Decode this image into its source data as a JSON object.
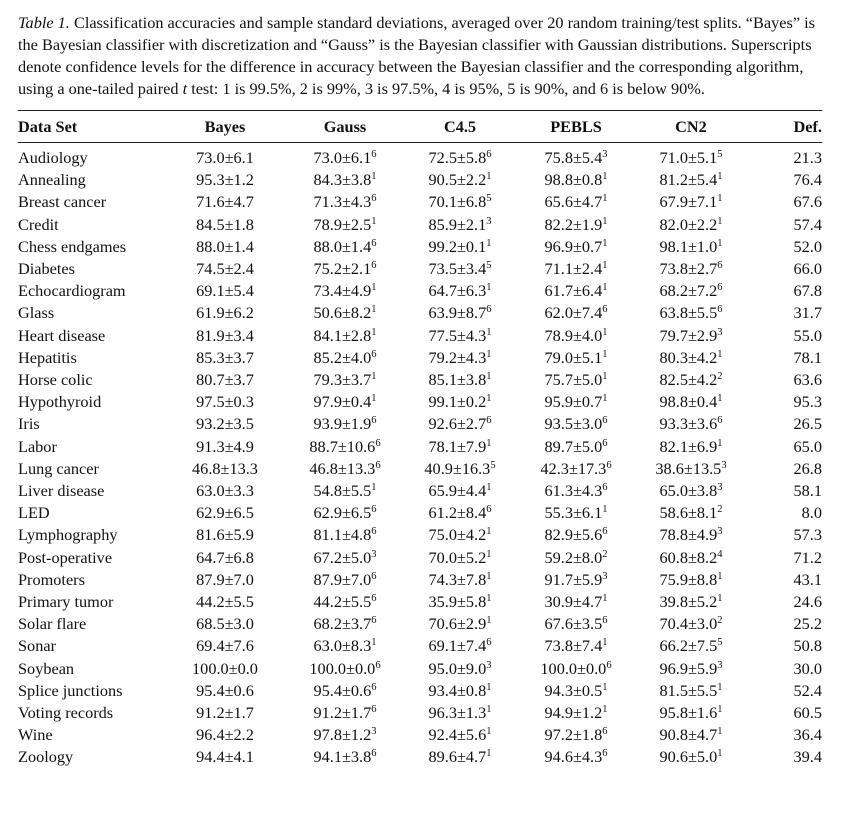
{
  "caption": {
    "label": "Table 1.",
    "text_before_t": "Classification accuracies and sample standard deviations, averaged over 20 random training/test splits. “Bayes” is the Bayesian classifier with discretization and “Gauss” is the Bayesian classifier with Gaussian distributions. Superscripts denote confidence levels for the difference in accuracy between the Bayesian classifier and the corresponding algorithm, using a one-tailed paired",
    "t_symbol": "t",
    "text_after_t": "test: 1 is 99.5%, 2 is 99%, 3 is 97.5%, 4 is 95%, 5 is 90%, and 6 is below 90%."
  },
  "table": {
    "headers": [
      "Data Set",
      "Bayes",
      "Gauss",
      "C4.5",
      "PEBLS",
      "CN2",
      "Def."
    ],
    "rows": [
      [
        "Audiology",
        [
          "73.0±6.1",
          ""
        ],
        [
          "73.0±6.1",
          "6"
        ],
        [
          "72.5±5.8",
          "6"
        ],
        [
          "75.8±5.4",
          "3"
        ],
        [
          "71.0±5.1",
          "5"
        ],
        "21.3"
      ],
      [
        "Annealing",
        [
          "95.3±1.2",
          ""
        ],
        [
          "84.3±3.8",
          "1"
        ],
        [
          "90.5±2.2",
          "1"
        ],
        [
          "98.8±0.8",
          "1"
        ],
        [
          "81.2±5.4",
          "1"
        ],
        "76.4"
      ],
      [
        "Breast cancer",
        [
          "71.6±4.7",
          ""
        ],
        [
          "71.3±4.3",
          "6"
        ],
        [
          "70.1±6.8",
          "5"
        ],
        [
          "65.6±4.7",
          "1"
        ],
        [
          "67.9±7.1",
          "1"
        ],
        "67.6"
      ],
      [
        "Credit",
        [
          "84.5±1.8",
          ""
        ],
        [
          "78.9±2.5",
          "1"
        ],
        [
          "85.9±2.1",
          "3"
        ],
        [
          "82.2±1.9",
          "1"
        ],
        [
          "82.0±2.2",
          "1"
        ],
        "57.4"
      ],
      [
        "Chess endgames",
        [
          "88.0±1.4",
          ""
        ],
        [
          "88.0±1.4",
          "6"
        ],
        [
          "99.2±0.1",
          "1"
        ],
        [
          "96.9±0.7",
          "1"
        ],
        [
          "98.1±1.0",
          "1"
        ],
        "52.0"
      ],
      [
        "Diabetes",
        [
          "74.5±2.4",
          ""
        ],
        [
          "75.2±2.1",
          "6"
        ],
        [
          "73.5±3.4",
          "5"
        ],
        [
          "71.1±2.4",
          "1"
        ],
        [
          "73.8±2.7",
          "6"
        ],
        "66.0"
      ],
      [
        "Echocardiogram",
        [
          "69.1±5.4",
          ""
        ],
        [
          "73.4±4.9",
          "1"
        ],
        [
          "64.7±6.3",
          "1"
        ],
        [
          "61.7±6.4",
          "1"
        ],
        [
          "68.2±7.2",
          "6"
        ],
        "67.8"
      ],
      [
        "Glass",
        [
          "61.9±6.2",
          ""
        ],
        [
          "50.6±8.2",
          "1"
        ],
        [
          "63.9±8.7",
          "6"
        ],
        [
          "62.0±7.4",
          "6"
        ],
        [
          "63.8±5.5",
          "6"
        ],
        "31.7"
      ],
      [
        "Heart disease",
        [
          "81.9±3.4",
          ""
        ],
        [
          "84.1±2.8",
          "1"
        ],
        [
          "77.5±4.3",
          "1"
        ],
        [
          "78.9±4.0",
          "1"
        ],
        [
          "79.7±2.9",
          "3"
        ],
        "55.0"
      ],
      [
        "Hepatitis",
        [
          "85.3±3.7",
          ""
        ],
        [
          "85.2±4.0",
          "6"
        ],
        [
          "79.2±4.3",
          "1"
        ],
        [
          "79.0±5.1",
          "1"
        ],
        [
          "80.3±4.2",
          "1"
        ],
        "78.1"
      ],
      [
        "Horse colic",
        [
          "80.7±3.7",
          ""
        ],
        [
          "79.3±3.7",
          "1"
        ],
        [
          "85.1±3.8",
          "1"
        ],
        [
          "75.7±5.0",
          "1"
        ],
        [
          "82.5±4.2",
          "2"
        ],
        "63.6"
      ],
      [
        "Hypothyroid",
        [
          "97.5±0.3",
          ""
        ],
        [
          "97.9±0.4",
          "1"
        ],
        [
          "99.1±0.2",
          "1"
        ],
        [
          "95.9±0.7",
          "1"
        ],
        [
          "98.8±0.4",
          "1"
        ],
        "95.3"
      ],
      [
        "Iris",
        [
          "93.2±3.5",
          ""
        ],
        [
          "93.9±1.9",
          "6"
        ],
        [
          "92.6±2.7",
          "6"
        ],
        [
          "93.5±3.0",
          "6"
        ],
        [
          "93.3±3.6",
          "6"
        ],
        "26.5"
      ],
      [
        "Labor",
        [
          "91.3±4.9",
          ""
        ],
        [
          "88.7±10.6",
          "6"
        ],
        [
          "78.1±7.9",
          "1"
        ],
        [
          "89.7±5.0",
          "6"
        ],
        [
          "82.1±6.9",
          "1"
        ],
        "65.0"
      ],
      [
        "Lung cancer",
        [
          "46.8±13.3",
          ""
        ],
        [
          "46.8±13.3",
          "6"
        ],
        [
          "40.9±16.3",
          "5"
        ],
        [
          "42.3±17.3",
          "6"
        ],
        [
          "38.6±13.5",
          "3"
        ],
        "26.8"
      ],
      [
        "Liver disease",
        [
          "63.0±3.3",
          ""
        ],
        [
          "54.8±5.5",
          "1"
        ],
        [
          "65.9±4.4",
          "1"
        ],
        [
          "61.3±4.3",
          "6"
        ],
        [
          "65.0±3.8",
          "3"
        ],
        "58.1"
      ],
      [
        "LED",
        [
          "62.9±6.5",
          ""
        ],
        [
          "62.9±6.5",
          "6"
        ],
        [
          "61.2±8.4",
          "6"
        ],
        [
          "55.3±6.1",
          "1"
        ],
        [
          "58.6±8.1",
          "2"
        ],
        "8.0"
      ],
      [
        "Lymphography",
        [
          "81.6±5.9",
          ""
        ],
        [
          "81.1±4.8",
          "6"
        ],
        [
          "75.0±4.2",
          "1"
        ],
        [
          "82.9±5.6",
          "6"
        ],
        [
          "78.8±4.9",
          "3"
        ],
        "57.3"
      ],
      [
        "Post-operative",
        [
          "64.7±6.8",
          ""
        ],
        [
          "67.2±5.0",
          "3"
        ],
        [
          "70.0±5.2",
          "1"
        ],
        [
          "59.2±8.0",
          "2"
        ],
        [
          "60.8±8.2",
          "4"
        ],
        "71.2"
      ],
      [
        "Promoters",
        [
          "87.9±7.0",
          ""
        ],
        [
          "87.9±7.0",
          "6"
        ],
        [
          "74.3±7.8",
          "1"
        ],
        [
          "91.7±5.9",
          "3"
        ],
        [
          "75.9±8.8",
          "1"
        ],
        "43.1"
      ],
      [
        "Primary tumor",
        [
          "44.2±5.5",
          ""
        ],
        [
          "44.2±5.5",
          "6"
        ],
        [
          "35.9±5.8",
          "1"
        ],
        [
          "30.9±4.7",
          "1"
        ],
        [
          "39.8±5.2",
          "1"
        ],
        "24.6"
      ],
      [
        "Solar flare",
        [
          "68.5±3.0",
          ""
        ],
        [
          "68.2±3.7",
          "6"
        ],
        [
          "70.6±2.9",
          "1"
        ],
        [
          "67.6±3.5",
          "6"
        ],
        [
          "70.4±3.0",
          "2"
        ],
        "25.2"
      ],
      [
        "Sonar",
        [
          "69.4±7.6",
          ""
        ],
        [
          "63.0±8.3",
          "1"
        ],
        [
          "69.1±7.4",
          "6"
        ],
        [
          "73.8±7.4",
          "1"
        ],
        [
          "66.2±7.5",
          "5"
        ],
        "50.8"
      ],
      [
        "Soybean",
        [
          "100.0±0.0",
          ""
        ],
        [
          "100.0±0.0",
          "6"
        ],
        [
          "95.0±9.0",
          "3"
        ],
        [
          "100.0±0.0",
          "6"
        ],
        [
          "96.9±5.9",
          "3"
        ],
        "30.0"
      ],
      [
        "Splice junctions",
        [
          "95.4±0.6",
          ""
        ],
        [
          "95.4±0.6",
          "6"
        ],
        [
          "93.4±0.8",
          "1"
        ],
        [
          "94.3±0.5",
          "1"
        ],
        [
          "81.5±5.5",
          "1"
        ],
        "52.4"
      ],
      [
        "Voting records",
        [
          "91.2±1.7",
          ""
        ],
        [
          "91.2±1.7",
          "6"
        ],
        [
          "96.3±1.3",
          "1"
        ],
        [
          "94.9±1.2",
          "1"
        ],
        [
          "95.8±1.6",
          "1"
        ],
        "60.5"
      ],
      [
        "Wine",
        [
          "96.4±2.2",
          ""
        ],
        [
          "97.8±1.2",
          "3"
        ],
        [
          "92.4±5.6",
          "1"
        ],
        [
          "97.2±1.8",
          "6"
        ],
        [
          "90.8±4.7",
          "1"
        ],
        "36.4"
      ],
      [
        "Zoology",
        [
          "94.4±4.1",
          ""
        ],
        [
          "94.1±3.8",
          "6"
        ],
        [
          "89.6±4.7",
          "1"
        ],
        [
          "94.6±4.3",
          "6"
        ],
        [
          "90.6±5.0",
          "1"
        ],
        "39.4"
      ]
    ]
  }
}
